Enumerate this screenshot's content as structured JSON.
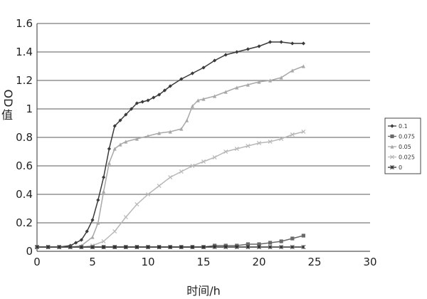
{
  "chart_data": {
    "type": "line",
    "title": "",
    "xlabel": "时间/h",
    "ylabel": "OD值",
    "xlim": [
      0,
      30
    ],
    "ylim": [
      0,
      1.6
    ],
    "x_ticks": [
      "0",
      "5",
      "10",
      "15",
      "20",
      "25",
      "30"
    ],
    "y_ticks": [
      "0",
      "0.2",
      "0.4",
      "0.6",
      "0.8",
      "1",
      "1.2",
      "1.4",
      "1.6"
    ],
    "grid": "horizontal",
    "legend_position": "right",
    "series": [
      {
        "name": "0.1",
        "color": "#3a3a3a",
        "marker": "diamond",
        "x": [
          0,
          1,
          2,
          3,
          3.5,
          4,
          4.5,
          5,
          5.5,
          6,
          6.5,
          7,
          7.5,
          8,
          8.5,
          9,
          9.5,
          10,
          10.5,
          11,
          11.5,
          12,
          13,
          14,
          15,
          16,
          17,
          18,
          19,
          20,
          21,
          22,
          23,
          24
        ],
        "y": [
          0.03,
          0.03,
          0.03,
          0.04,
          0.06,
          0.08,
          0.14,
          0.22,
          0.36,
          0.52,
          0.72,
          0.88,
          0.92,
          0.96,
          1.0,
          1.04,
          1.05,
          1.06,
          1.08,
          1.1,
          1.13,
          1.16,
          1.21,
          1.25,
          1.29,
          1.34,
          1.38,
          1.4,
          1.42,
          1.44,
          1.47,
          1.47,
          1.46,
          1.46
        ]
      },
      {
        "name": "0.075",
        "color": "#6a6a6a",
        "marker": "square",
        "x": [
          0,
          1,
          2,
          3,
          4,
          5,
          6,
          7,
          8,
          9,
          10,
          11,
          12,
          13,
          14,
          15,
          16,
          17,
          18,
          19,
          20,
          21,
          22,
          23,
          24
        ],
        "y": [
          0.03,
          0.03,
          0.03,
          0.03,
          0.03,
          0.03,
          0.03,
          0.03,
          0.03,
          0.03,
          0.03,
          0.03,
          0.03,
          0.03,
          0.03,
          0.03,
          0.04,
          0.04,
          0.04,
          0.05,
          0.05,
          0.06,
          0.07,
          0.09,
          0.11
        ]
      },
      {
        "name": "0.05",
        "color": "#a8a8a8",
        "marker": "triangle",
        "x": [
          0,
          1,
          2,
          3,
          4,
          5,
          5.5,
          6,
          6.5,
          7,
          7.5,
          8,
          9,
          10,
          11,
          12,
          13,
          13.5,
          14,
          14.5,
          15,
          16,
          17,
          18,
          19,
          20,
          21,
          22,
          23,
          24
        ],
        "y": [
          0.03,
          0.03,
          0.03,
          0.03,
          0.04,
          0.1,
          0.2,
          0.42,
          0.62,
          0.72,
          0.75,
          0.77,
          0.79,
          0.81,
          0.83,
          0.84,
          0.86,
          0.92,
          1.02,
          1.06,
          1.07,
          1.09,
          1.12,
          1.15,
          1.17,
          1.19,
          1.2,
          1.22,
          1.27,
          1.3
        ]
      },
      {
        "name": "0.025",
        "color": "#b8b8b8",
        "marker": "x",
        "x": [
          0,
          1,
          2,
          3,
          4,
          5,
          6,
          7,
          8,
          9,
          10,
          11,
          12,
          13,
          14,
          15,
          16,
          17,
          18,
          19,
          20,
          21,
          22,
          23,
          24
        ],
        "y": [
          0.03,
          0.03,
          0.03,
          0.03,
          0.03,
          0.04,
          0.07,
          0.14,
          0.24,
          0.33,
          0.4,
          0.46,
          0.52,
          0.56,
          0.6,
          0.63,
          0.66,
          0.7,
          0.72,
          0.74,
          0.76,
          0.77,
          0.79,
          0.82,
          0.84
        ]
      },
      {
        "name": "0",
        "color": "#303030",
        "marker": "star",
        "x": [
          0,
          1,
          2,
          3,
          4,
          5,
          6,
          7,
          8,
          9,
          10,
          11,
          12,
          13,
          14,
          15,
          16,
          17,
          18,
          19,
          20,
          21,
          22,
          23,
          24
        ],
        "y": [
          0.03,
          0.03,
          0.03,
          0.03,
          0.03,
          0.03,
          0.03,
          0.03,
          0.03,
          0.03,
          0.03,
          0.03,
          0.03,
          0.03,
          0.03,
          0.03,
          0.03,
          0.03,
          0.03,
          0.03,
          0.03,
          0.03,
          0.03,
          0.03,
          0.03
        ]
      }
    ]
  }
}
